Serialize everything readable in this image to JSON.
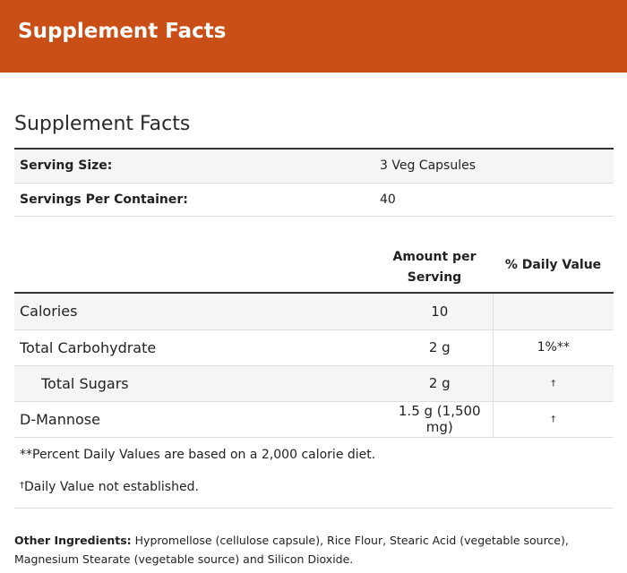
{
  "header": {
    "title": "Supplement Facts"
  },
  "facts": {
    "title": "Supplement Facts",
    "serving_rows": [
      {
        "label": "Serving Size:",
        "value": "3 Veg Capsules"
      },
      {
        "label": "Servings Per Container:",
        "value": "40"
      }
    ],
    "columns": {
      "amount_line1": "Amount per",
      "amount_line2": "Serving",
      "daily_value": "% Daily Value"
    },
    "nutrients": [
      {
        "name": "Calories",
        "amount": "10",
        "dv": ""
      },
      {
        "name": "Total Carbohydrate",
        "amount": "2 g",
        "dv": "1%**"
      },
      {
        "name": "Total Sugars",
        "amount": "2 g",
        "dv": "†"
      },
      {
        "name": "D-Mannose",
        "amount": "1.5 g (1,500 mg)",
        "dv": "†"
      }
    ],
    "footnotes": {
      "percent_note": "**Percent Daily Values are based on a 2,000 calorie diet.",
      "dagger_symbol": "†",
      "dagger_note": "Daily Value not established."
    }
  },
  "ingredients": {
    "label": "Other Ingredients:",
    "text": " Hypromellose (cellulose capsule), Rice Flour, Stearic Acid (vegetable source), Magnesium Stearate (vegetable source) and Silicon Dioxide."
  },
  "colors": {
    "header_bg": "#c94f16",
    "row_stripe": "#f5f5f5"
  }
}
